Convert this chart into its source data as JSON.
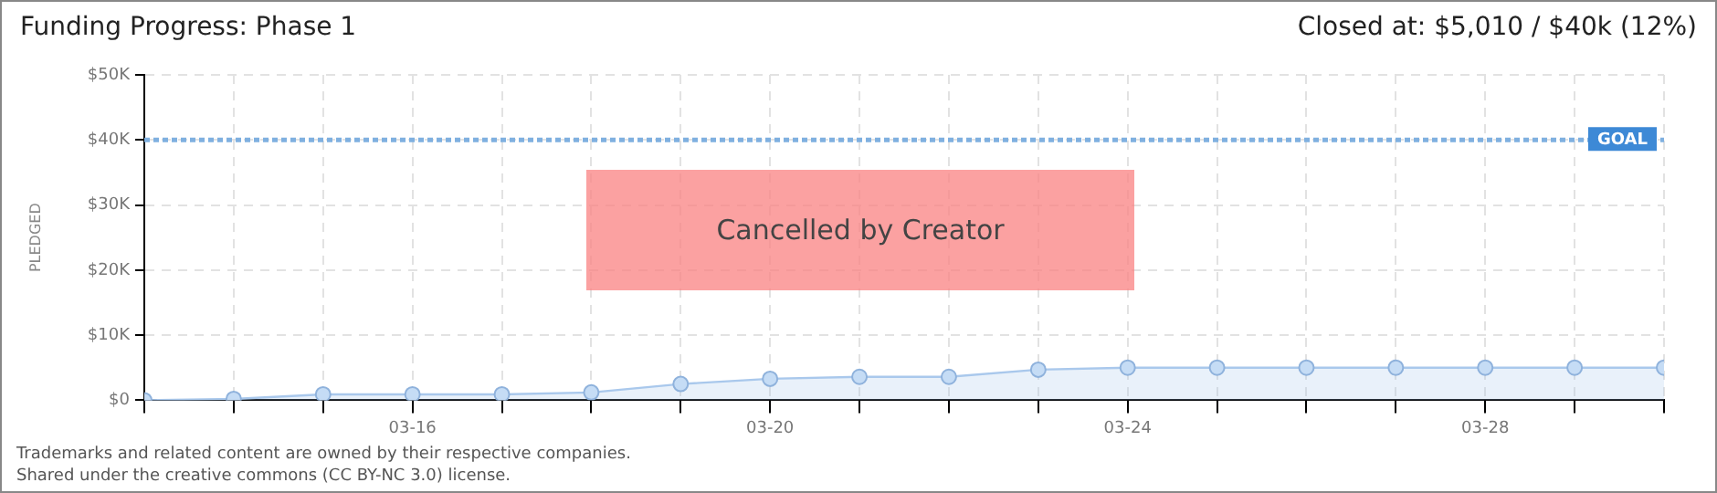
{
  "chart_data": {
    "type": "area",
    "title": "Funding Progress: Phase 1",
    "subtitle": "Closed at: $5,010 / $40k (12%)",
    "ylabel": "PLEDGED",
    "x": [
      "--03-13",
      "--03-14",
      "--03-15",
      "--03-16",
      "--03-17",
      "--03-18",
      "--03-19",
      "--03-20",
      "--03-21",
      "--03-22",
      "--03-23",
      "--03-24",
      "--03-25",
      "--03-26",
      "--03-27",
      "--03-28",
      "--03-29",
      "--03-30"
    ],
    "series": [
      {
        "color": "#a9c8ec",
        "values": [
          0,
          200,
          900,
          900,
          900,
          1200,
          2500,
          3300,
          3600,
          3600,
          4700,
          5010,
          5010,
          5010,
          5010,
          5010,
          5010,
          5010
        ]
      }
    ],
    "xlim": [
      "--03-13",
      "--03-30"
    ],
    "xticks": [
      {
        "value": "--03-13",
        "label": null
      },
      {
        "value": "--03-14",
        "label": null
      },
      {
        "value": "--03-15",
        "label": null
      },
      {
        "value": "--03-16",
        "label": "03-16"
      },
      {
        "value": "--03-17",
        "label": null
      },
      {
        "value": "--03-18",
        "label": null
      },
      {
        "value": "--03-19",
        "label": null
      },
      {
        "value": "--03-20",
        "label": "03-20"
      },
      {
        "value": "--03-21",
        "label": null
      },
      {
        "value": "--03-22",
        "label": null
      },
      {
        "value": "--03-23",
        "label": null
      },
      {
        "value": "--03-24",
        "label": "03-24"
      },
      {
        "value": "--03-25",
        "label": null
      },
      {
        "value": "--03-26",
        "label": null
      },
      {
        "value": "--03-27",
        "label": null
      },
      {
        "value": "--03-28",
        "label": "03-28"
      },
      {
        "value": "--03-29",
        "label": null
      },
      {
        "value": "--03-30",
        "label": null
      }
    ],
    "ylim": [
      0,
      50000
    ],
    "yticks": [
      {
        "value": 0,
        "label": "$0"
      },
      {
        "value": 10000,
        "label": "$10K"
      },
      {
        "value": 20000,
        "label": "$20K"
      },
      {
        "value": 30000,
        "label": "$30K"
      },
      {
        "value": 40000,
        "label": "$40K"
      },
      {
        "value": 50000,
        "label": "$50K"
      }
    ],
    "ref_lines": [
      {
        "axis": "y",
        "value": 40000,
        "label": "GOAL",
        "color": "#7fb0e0",
        "line_style": "dotted"
      }
    ],
    "annotations": [
      "Cancelled by Creator",
      "Trademarks and related content are owned by their respective companies.",
      "Shared under the creative commons (CC BY-NC 3.0) license."
    ],
    "grid": true,
    "marker": "circle",
    "legend": false
  }
}
